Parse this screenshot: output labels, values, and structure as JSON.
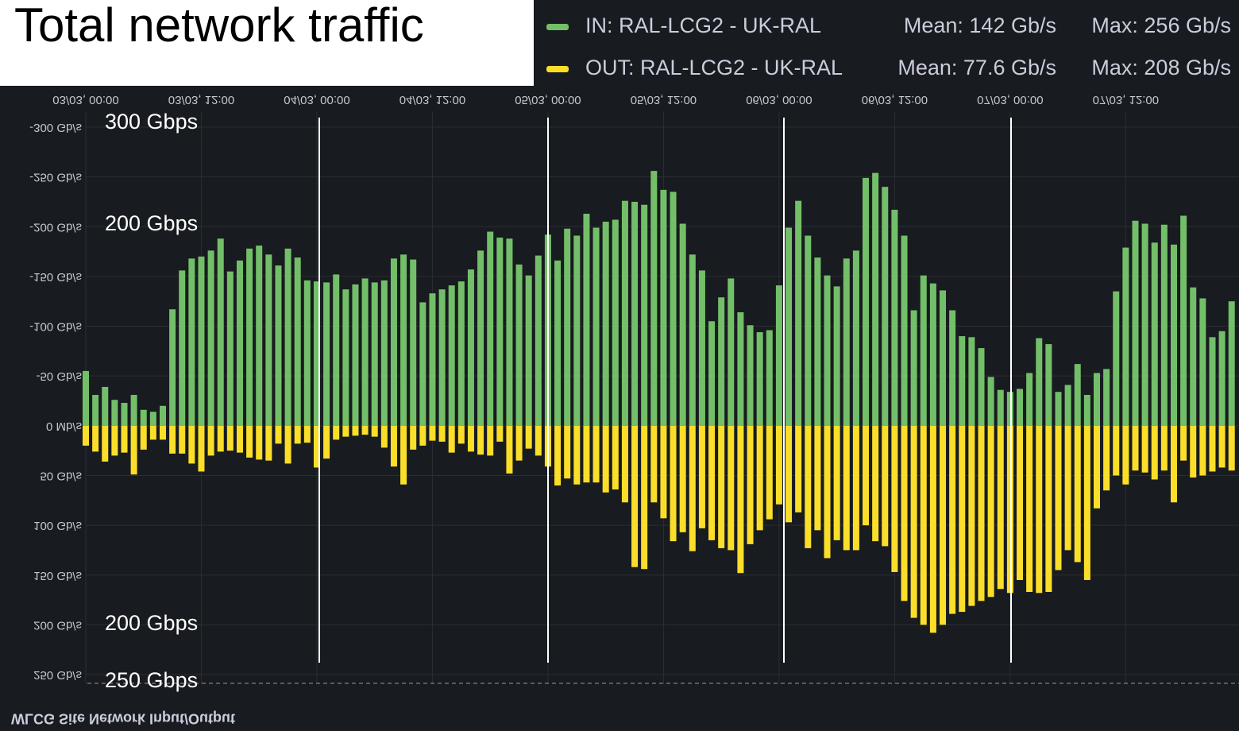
{
  "header": {
    "title": "Total network traffic"
  },
  "chart_data": {
    "type": "bar",
    "title": "WLCG Site Network Input/Output",
    "x": [
      0,
      1,
      2,
      3,
      4,
      5,
      6,
      7,
      8,
      9,
      10,
      11,
      12,
      13,
      14,
      15,
      16,
      17,
      18,
      19,
      20,
      21,
      22,
      23,
      24,
      25,
      26,
      27,
      28,
      29,
      30,
      31,
      32,
      33,
      34,
      35,
      36,
      37,
      38,
      39,
      40,
      41,
      42,
      43,
      44,
      45,
      46,
      47,
      48,
      49,
      50,
      51,
      52,
      53,
      54,
      55,
      56,
      57,
      58,
      59,
      60,
      61,
      62,
      63,
      64,
      65,
      66,
      67,
      68,
      69,
      70,
      71,
      72,
      73,
      74,
      75,
      76,
      77,
      78,
      79,
      80,
      81,
      82,
      83,
      84,
      85,
      86,
      87,
      88,
      89,
      90,
      91,
      92,
      93,
      94,
      95,
      96,
      97,
      98,
      99,
      100,
      101,
      102,
      103,
      104,
      105,
      106,
      107,
      108,
      109,
      110,
      111,
      112,
      113,
      114,
      115,
      116,
      117,
      118,
      119
    ],
    "xlim": [
      0,
      119.6
    ],
    "xticks": [
      {
        "value": 0,
        "label": "03/03, 00:00"
      },
      {
        "value": 12,
        "label": "03/03, 12:00"
      },
      {
        "value": 24,
        "label": "04/03, 00:00"
      },
      {
        "value": 36,
        "label": "04/03, 12:00"
      },
      {
        "value": 48,
        "label": "05/03, 00:00"
      },
      {
        "value": 60,
        "label": "05/03, 12:00"
      },
      {
        "value": 72,
        "label": "06/03, 00:00"
      },
      {
        "value": 84,
        "label": "06/03, 12:00"
      },
      {
        "value": 96,
        "label": "07/03, 00:00"
      },
      {
        "value": 108,
        "label": "07/03, 12:00"
      }
    ],
    "ylim": [
      -250,
      300
    ],
    "yticks": [
      {
        "value": 300,
        "label": "-300 Gb/s"
      },
      {
        "value": 250,
        "label": "-250 Gb/s"
      },
      {
        "value": 200,
        "label": "-200 Gb/s"
      },
      {
        "value": 150,
        "label": "-150 Gb/s"
      },
      {
        "value": 100,
        "label": "-100 Gb/s"
      },
      {
        "value": 50,
        "label": "-50 Gb/s"
      },
      {
        "value": 0,
        "label": "0 Mb/s"
      },
      {
        "value": -50,
        "label": "50 Gb/s"
      },
      {
        "value": -100,
        "label": "100 Gb/s"
      },
      {
        "value": -150,
        "label": "150 Gb/s"
      },
      {
        "value": -200,
        "label": "200 Gb/s"
      },
      {
        "value": -250,
        "label": "250 Gb/s"
      }
    ],
    "grid": true,
    "series": [
      {
        "name": "IN: RAL-LCG2 - UK-RAL",
        "color": "#73bf69",
        "stats": [
          "Mean: 142 Gb/s",
          "Max: 256 Gb/s"
        ],
        "values": [
          55,
          31,
          39,
          26,
          23,
          31,
          16,
          14,
          20,
          117,
          156,
          168,
          170,
          176,
          188,
          155,
          166,
          178,
          181,
          172,
          161,
          178,
          169,
          146,
          145,
          144,
          152,
          137,
          142,
          148,
          144,
          146,
          168,
          172,
          167,
          124,
          133,
          137,
          141,
          145,
          157,
          176,
          195,
          189,
          188,
          162,
          151,
          171,
          192,
          166,
          198,
          191,
          213,
          199,
          205,
          207,
          226,
          225,
          222,
          256,
          237,
          235,
          203,
          172,
          156,
          105,
          129,
          148,
          114,
          101,
          94,
          96,
          141,
          199,
          226,
          191,
          169,
          151,
          140,
          168,
          176,
          249,
          254,
          240,
          217,
          191,
          116,
          151,
          143,
          136,
          116,
          90,
          89,
          78,
          49,
          36,
          34,
          37,
          53,
          88,
          82,
          34,
          41,
          62,
          31,
          53,
          57,
          135,
          179,
          206,
          203,
          184,
          202,
          182,
          211,
          139,
          128,
          89,
          95,
          125
        ]
      },
      {
        "name": "OUT: RAL-LCG2 - UK-RAL",
        "color": "#fade2a",
        "stats": [
          "Mean: 77.6 Gb/s",
          "Max: 208 Gb/s"
        ],
        "values": [
          -20,
          -26,
          -36,
          -30,
          -27,
          -49,
          -24,
          -14,
          -14,
          -28,
          -28,
          -38,
          -46,
          -30,
          -26,
          -25,
          -27,
          -32,
          -34,
          -35,
          -18,
          -38,
          -18,
          -17,
          -42,
          -33,
          -14,
          -11,
          -10,
          -9,
          -11,
          -22,
          -41,
          -59,
          -24,
          -20,
          -15,
          -16,
          -27,
          -18,
          -26,
          -29,
          -30,
          -16,
          -48,
          -35,
          -23,
          -30,
          -41,
          -60,
          -53,
          -59,
          -57,
          -57,
          -67,
          -64,
          -77,
          -142,
          -144,
          -77,
          -93,
          -116,
          -107,
          -126,
          -103,
          -115,
          -123,
          -125,
          -148,
          -119,
          -105,
          -94,
          -79,
          -97,
          -87,
          -123,
          -105,
          -133,
          -115,
          -125,
          -125,
          -100,
          -116,
          -121,
          -147,
          -176,
          -193,
          -200,
          -208,
          -200,
          -189,
          -187,
          -181,
          -176,
          -172,
          -164,
          -168,
          -155,
          -167,
          -168,
          -167,
          -145,
          -125,
          -137,
          -155,
          -83,
          -65,
          -50,
          -59,
          -45,
          -47,
          -54,
          -45,
          -77,
          -35,
          -52,
          -50,
          -46,
          -42,
          -45
        ]
      }
    ],
    "annotations": [
      "300 Gbps",
      "200 Gbps",
      "200 Gbps",
      "250 Gbps"
    ]
  }
}
